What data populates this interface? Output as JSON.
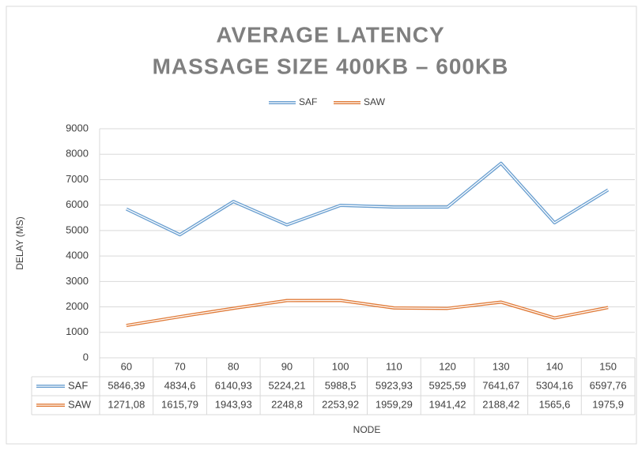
{
  "chart_data": {
    "type": "line",
    "title": "AVERAGE LATENCY",
    "subtitle": "MASSAGE SIZE 400KB – 600KB",
    "xlabel": "NODE",
    "ylabel": "DELAY (MS)",
    "categories": [
      "60",
      "70",
      "80",
      "90",
      "100",
      "110",
      "120",
      "130",
      "140",
      "150"
    ],
    "series": [
      {
        "name": "SAF",
        "color": "#6a9fd0",
        "values": [
          5846.39,
          4834.6,
          6140.93,
          5224.21,
          5988.5,
          5923.93,
          5925.59,
          7641.67,
          5304.16,
          6597.76
        ],
        "value_labels": [
          "5846,39",
          "4834,6",
          "6140,93",
          "5224,21",
          "5988,5",
          "5923,93",
          "5925,59",
          "7641,67",
          "5304,16",
          "6597,76"
        ]
      },
      {
        "name": "SAW",
        "color": "#e07b39",
        "values": [
          1271.08,
          1615.79,
          1943.93,
          2248.8,
          2253.92,
          1959.29,
          1941.42,
          2188.42,
          1565.6,
          1975.9
        ],
        "value_labels": [
          "1271,08",
          "1615,79",
          "1943,93",
          "2248,8",
          "2253,92",
          "1959,29",
          "1941,42",
          "2188,42",
          "1565,6",
          "1975,9"
        ]
      }
    ],
    "ylim": [
      0,
      9000
    ],
    "yticks": [
      0,
      1000,
      2000,
      3000,
      4000,
      5000,
      6000,
      7000,
      8000,
      9000
    ],
    "grid": true,
    "legend": "top"
  }
}
